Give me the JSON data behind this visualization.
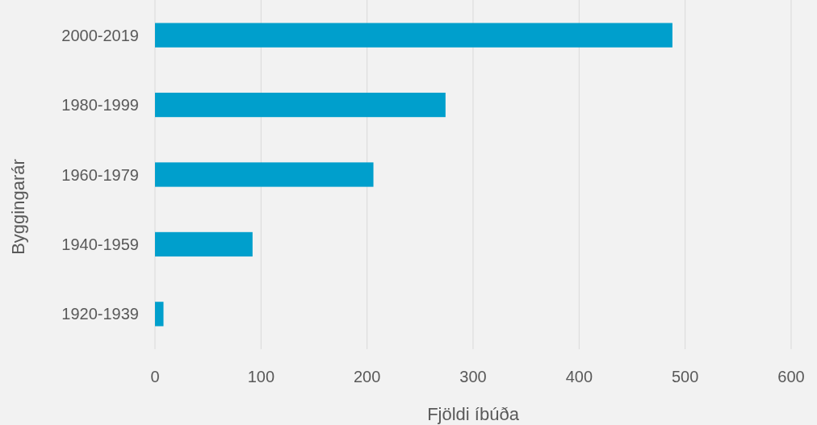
{
  "chart_data": {
    "type": "bar",
    "orientation": "horizontal",
    "xlabel": "Fjöldi íbúða",
    "ylabel": "Byggingarár",
    "categories": [
      "2000-2019",
      "1980-1999",
      "1960-1979",
      "1940-1959",
      "1920-1939"
    ],
    "values": [
      488,
      274,
      206,
      92,
      8
    ],
    "color": "#009fcc",
    "xlim": [
      0,
      600
    ],
    "xticks": [
      0,
      100,
      200,
      300,
      400,
      500,
      600
    ],
    "grid": "x"
  }
}
